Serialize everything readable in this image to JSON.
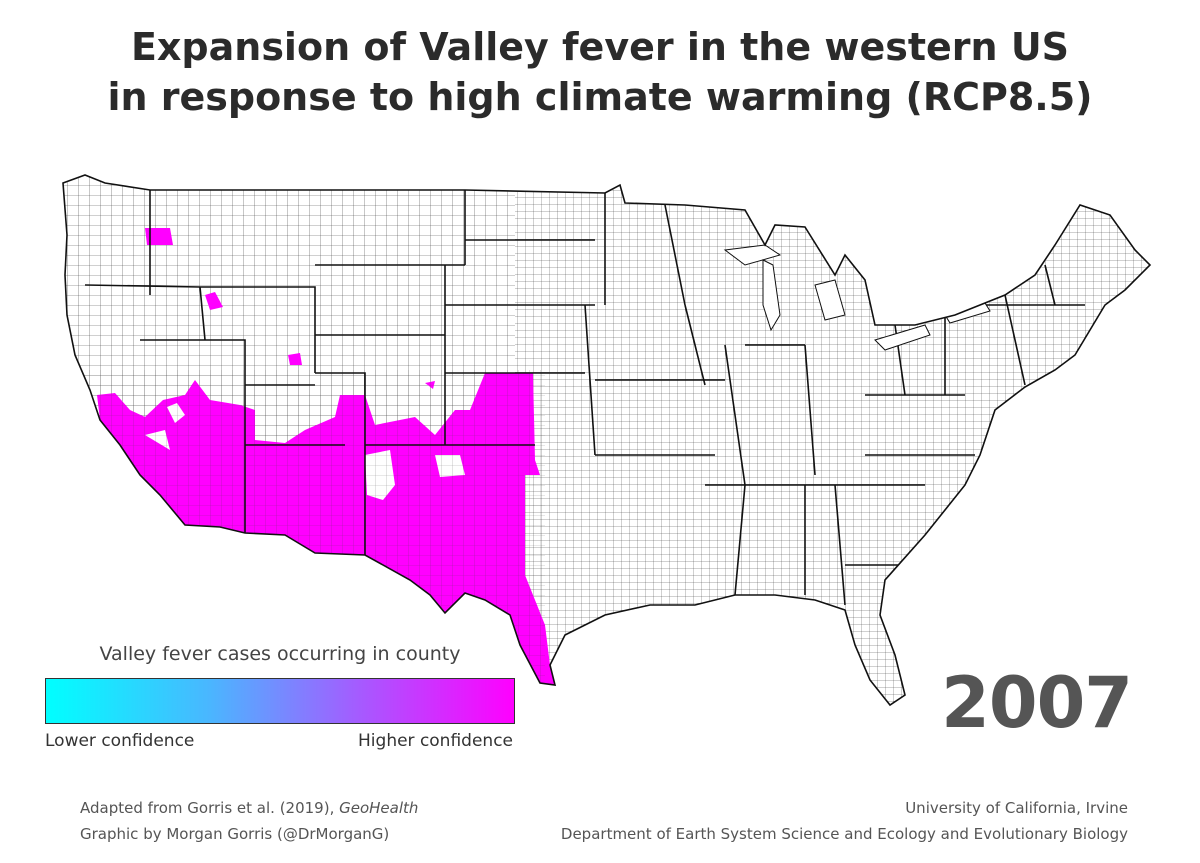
{
  "title": {
    "line1": "Expansion of Valley fever in the western US",
    "line2": "in response to high climate warming (RCP8.5)"
  },
  "year": "2007",
  "legend": {
    "title": "Valley fever cases occurring in county",
    "low_label": "Lower confidence",
    "high_label": "Higher confidence",
    "gradient_colors": [
      "#00ffff",
      "#ff00ff"
    ]
  },
  "credits": {
    "source_prefix": "Adapted from Gorris et al. (2019), ",
    "source_journal": "GeoHealth",
    "graphic": "Graphic by Morgan Gorris (@DrMorganG)",
    "institution": "University of California, Irvine",
    "department": "Department of Earth System Science and Ecology and Evolutionary Biology"
  },
  "colors": {
    "endemic_fill": "#ff00ff",
    "county_fill": "#ffffff",
    "county_border": "#333333"
  },
  "map": {
    "region": "contiguous United States",
    "endemic_region": "southwestern US counties"
  }
}
